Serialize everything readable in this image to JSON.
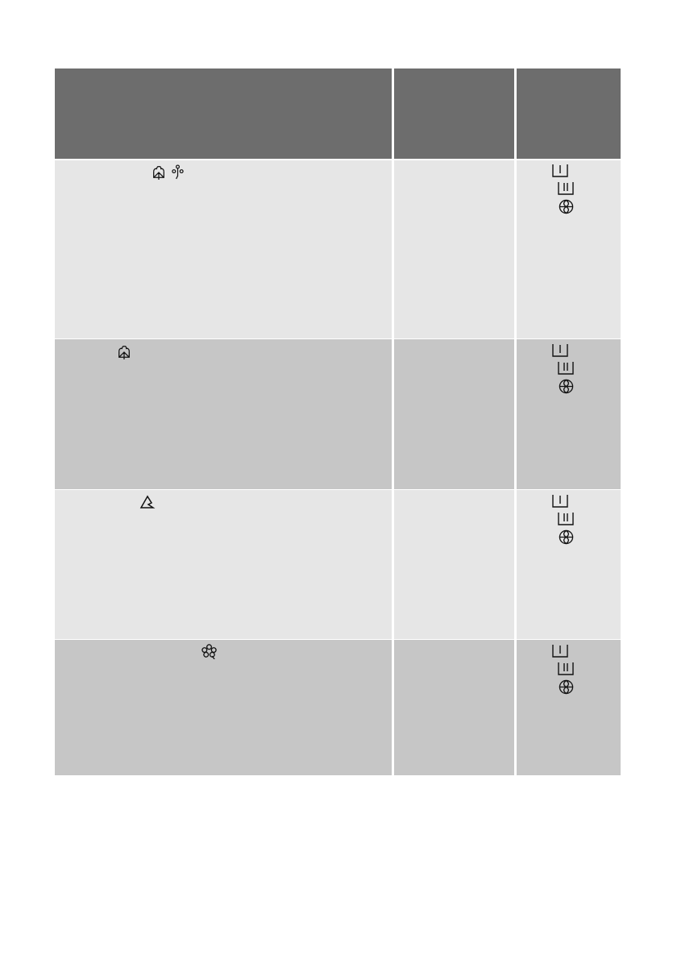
{
  "colors": {
    "header": "#6d6d6d",
    "row_light": "#e6e6e6",
    "row_dark": "#c6c6c6",
    "divider": "#ffffff",
    "icon": "#111111"
  },
  "rows": [
    {
      "program_icons": [
        "cotton-icon",
        "eco-icon"
      ],
      "compartment_icons": [
        "compartment-1-icon",
        "compartment-2-icon",
        "softener-icon"
      ]
    },
    {
      "program_icons": [
        "cotton-icon"
      ],
      "compartment_icons": [
        "compartment-1-icon",
        "compartment-2-icon",
        "softener-icon"
      ]
    },
    {
      "program_icons": [
        "synthetics-icon"
      ],
      "compartment_icons": [
        "compartment-1-icon",
        "compartment-2-icon",
        "softener-icon"
      ]
    },
    {
      "program_icons": [
        "delicates-icon"
      ],
      "compartment_icons": [
        "compartment-1-icon",
        "compartment-2-icon",
        "softener-icon"
      ]
    }
  ]
}
